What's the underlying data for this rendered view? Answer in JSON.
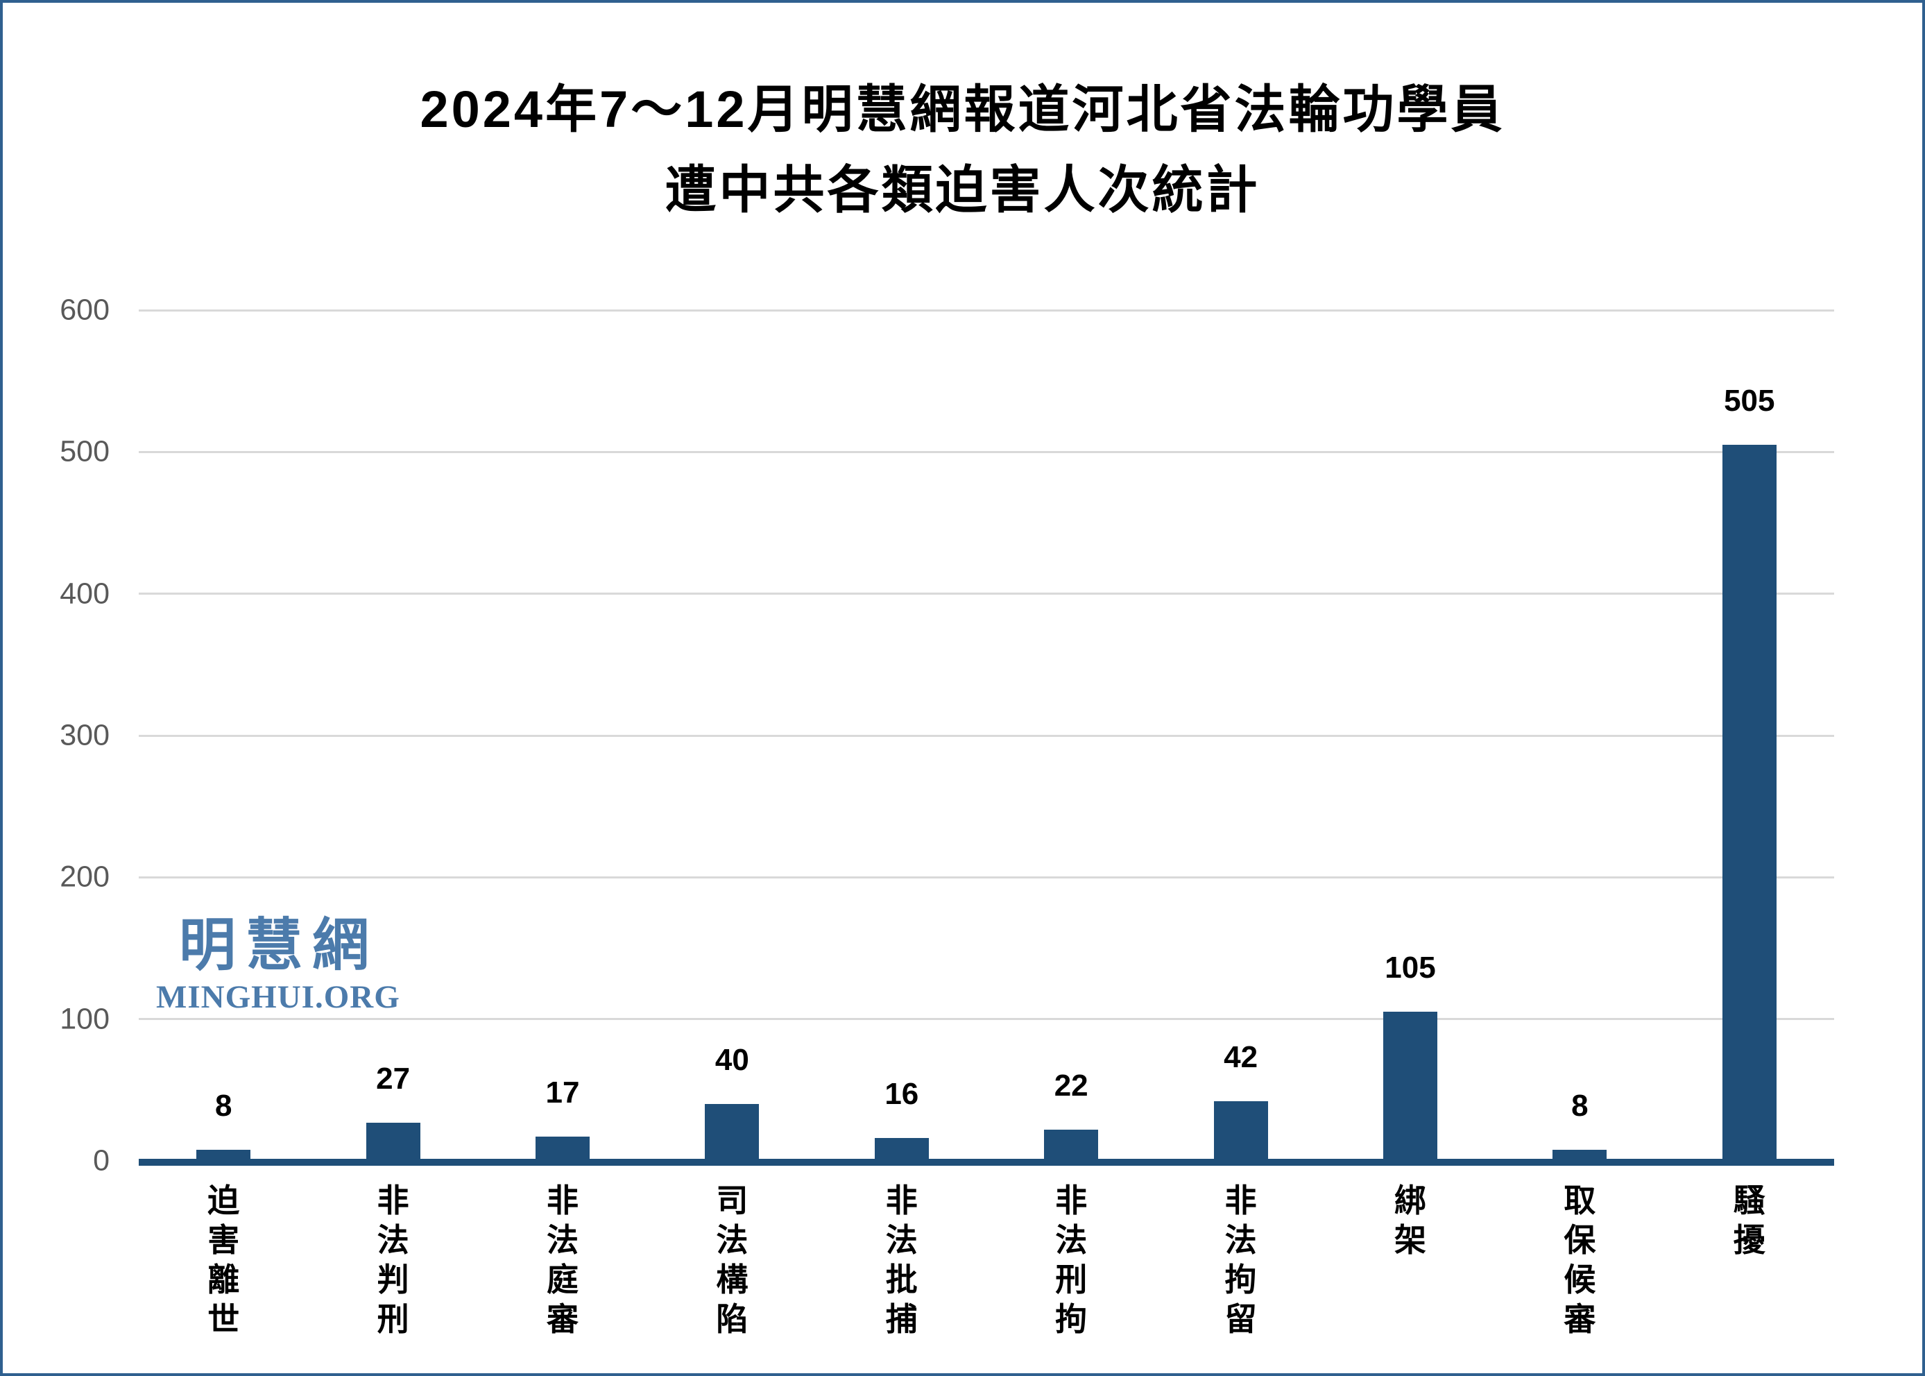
{
  "colors": {
    "background": "#ffffff",
    "border": "#2f608f",
    "bar": "#1f4e78",
    "baseline": "#1f4e78",
    "gridline": "#d9d9d9",
    "y_label": "#595959",
    "data_label": "#000000",
    "x_label": "#000000",
    "title": "#000000",
    "watermark": "#4c7bab"
  },
  "title": {
    "line1": "2024年7～12月明慧網報道河北省法輪功學員",
    "line2": "遭中共各類迫害人次統計"
  },
  "watermark": {
    "cjk": "明慧網",
    "latin": "MINGHUI.ORG"
  },
  "chart_data": {
    "type": "bar",
    "title": "2024年7～12月明慧網報道河北省法輪功學員遭中共各類迫害人次統計",
    "categories": [
      "迫害離世",
      "非法判刑",
      "非法庭審",
      "司法構陷",
      "非法批捕",
      "非法刑拘",
      "非法拘留",
      "綁架",
      "取保候審",
      "騷擾"
    ],
    "values": [
      8,
      27,
      17,
      40,
      16,
      22,
      42,
      105,
      8,
      505
    ],
    "data_labels": [
      "8",
      "27",
      "17",
      "40",
      "16",
      "22",
      "42",
      "105",
      "8",
      "505"
    ],
    "yticks": [
      0,
      100,
      200,
      300,
      400,
      500,
      600
    ],
    "ylim": [
      0,
      600
    ],
    "xlabel": "",
    "ylabel": "",
    "legend_position": "none",
    "grid": "horizontal",
    "bar_orientation": "vertical",
    "x_tick_orientation": "vertical-stacked"
  }
}
